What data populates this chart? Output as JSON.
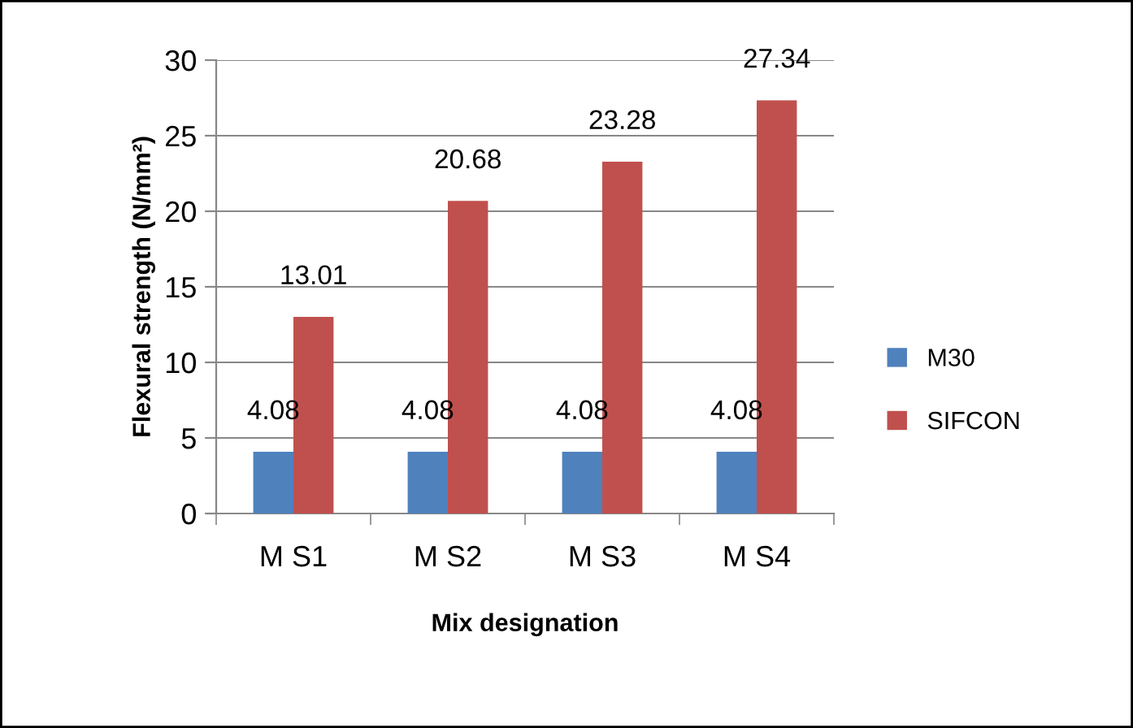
{
  "chart_data": {
    "type": "bar",
    "xlabel": "Mix designation",
    "ylabel": "Flexural strength (N/mm²)",
    "categories": [
      "M S1",
      "M S2",
      "M S3",
      "M S4"
    ],
    "series": [
      {
        "name": "M30",
        "color": "#4f81bd",
        "values": [
          4.08,
          4.08,
          4.08,
          4.08
        ]
      },
      {
        "name": "SIFCON",
        "color": "#c0504d",
        "values": [
          13.01,
          20.68,
          23.28,
          27.34
        ]
      }
    ],
    "ylim": [
      0,
      30
    ],
    "yticks": [
      0,
      5,
      10,
      15,
      20,
      25,
      30
    ],
    "grid": "y",
    "legend": "right",
    "data_labels": true
  }
}
